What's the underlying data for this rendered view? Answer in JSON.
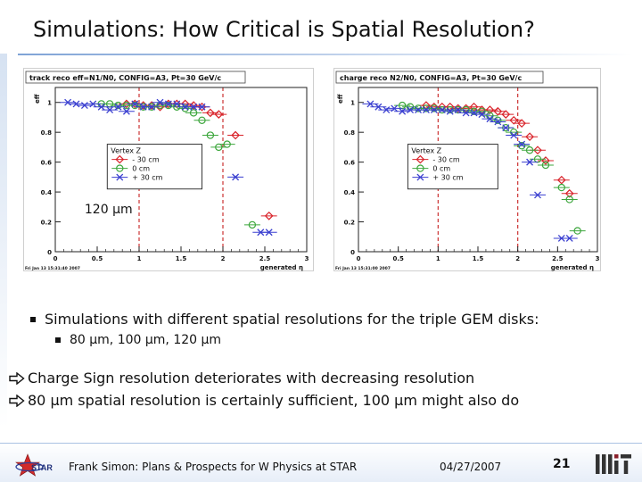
{
  "slide": {
    "title": "Simulations: How Critical is Spatial Resolution?",
    "bullet_main": "Simulations with different spatial resolutions for the triple GEM disks:",
    "bullet_sub": "80 µm, 100 µm, 120 µm",
    "conclusion_1": "Charge Sign resolution deteriorates with decreasing resolution",
    "conclusion_2": "80 µm spatial resolution is certainly sufficient, 100 µm might also do",
    "overlay_label": "120 µm"
  },
  "footer": {
    "author": "Frank Simon: Plans & Prospects for W Physics at STAR",
    "date": "04/27/2007",
    "page": "21",
    "logo_left": "STAR",
    "logo_right": "MIT"
  },
  "icons": {
    "bullet": "square-bullet-icon",
    "arrow": "hollow-right-arrow-icon"
  },
  "colors": {
    "minus30": "#d9232a",
    "zero": "#3ca63c",
    "plus30": "#3a3fd0"
  },
  "chart_data": [
    {
      "type": "scatter",
      "title": "track reco eff=N1/N0, CONFIG=A3, Pt=30 GeV/c",
      "ylabel": "eff",
      "xlabel": "generated η",
      "xlim": [
        0,
        3
      ],
      "ylim": [
        0,
        1.1
      ],
      "xticks": [
        "0",
        "0.5",
        "1",
        "1.5",
        "2",
        "2.5",
        "3"
      ],
      "yticks": [
        "0",
        "0.2",
        "0.4",
        "0.6",
        "0.8",
        "1"
      ],
      "footnote": "Fri Jan 13 15:31:40 2007",
      "legend": {
        "title": "Vertex Z",
        "placement": "center-left"
      },
      "series": [
        {
          "name": "- 30 cm",
          "color": "#d9232a",
          "marker": "diamond",
          "x": [
            0.85,
            0.95,
            1.05,
            1.15,
            1.25,
            1.35,
            1.45,
            1.55,
            1.65,
            1.75,
            1.85,
            1.95,
            2.15,
            2.55
          ],
          "y": [
            0.99,
            0.99,
            0.98,
            0.98,
            0.97,
            0.99,
            0.99,
            0.99,
            0.98,
            0.97,
            0.93,
            0.92,
            0.78,
            0.24
          ]
        },
        {
          "name": "0 cm",
          "color": "#3ca63c",
          "marker": "circle",
          "x": [
            0.55,
            0.65,
            0.75,
            0.85,
            0.95,
            1.05,
            1.15,
            1.25,
            1.35,
            1.45,
            1.55,
            1.65,
            1.75,
            1.85,
            1.95,
            2.05,
            2.35
          ],
          "y": [
            0.99,
            0.99,
            0.98,
            0.98,
            0.98,
            0.97,
            0.97,
            0.98,
            0.98,
            0.97,
            0.96,
            0.93,
            0.88,
            0.78,
            0.7,
            0.72,
            0.18
          ]
        },
        {
          "name": "+ 30 cm",
          "color": "#3a3fd0",
          "marker": "x",
          "x": [
            0.15,
            0.25,
            0.35,
            0.45,
            0.55,
            0.65,
            0.75,
            0.85,
            0.95,
            1.05,
            1.15,
            1.25,
            1.35,
            1.45,
            1.55,
            1.65,
            1.75,
            2.15,
            2.45,
            2.55
          ],
          "y": [
            1.0,
            0.99,
            0.98,
            0.99,
            0.97,
            0.95,
            0.97,
            0.94,
            0.99,
            0.97,
            0.97,
            1.0,
            0.99,
            0.99,
            0.97,
            0.97,
            0.97,
            0.5,
            0.13,
            0.13
          ]
        }
      ]
    },
    {
      "type": "scatter",
      "title": "charge reco N2/N0, CONFIG=A3, Pt=30 GeV/c",
      "ylabel": "eff",
      "xlabel": "generated η",
      "xlim": [
        0,
        3
      ],
      "ylim": [
        0,
        1.1
      ],
      "xticks": [
        "0",
        "0.5",
        "1",
        "1.5",
        "2",
        "2.5",
        "3"
      ],
      "yticks": [
        "0",
        "0.2",
        "0.4",
        "0.6",
        "0.8",
        "1"
      ],
      "footnote": "Fri Jan 13 15:31:00 2007",
      "legend": {
        "title": "Vertex Z",
        "placement": "center-left"
      },
      "series": [
        {
          "name": "- 30 cm",
          "color": "#d9232a",
          "marker": "diamond",
          "x": [
            0.85,
            0.95,
            1.05,
            1.15,
            1.25,
            1.35,
            1.45,
            1.55,
            1.65,
            1.75,
            1.85,
            1.95,
            2.05,
            2.15,
            2.25,
            2.35,
            2.55,
            2.65
          ],
          "y": [
            0.98,
            0.97,
            0.97,
            0.97,
            0.96,
            0.96,
            0.97,
            0.95,
            0.95,
            0.94,
            0.92,
            0.88,
            0.86,
            0.77,
            0.68,
            0.61,
            0.48,
            0.39
          ]
        },
        {
          "name": "0 cm",
          "color": "#3ca63c",
          "marker": "circle",
          "x": [
            0.55,
            0.65,
            0.75,
            0.85,
            0.95,
            1.05,
            1.15,
            1.25,
            1.35,
            1.45,
            1.55,
            1.65,
            1.75,
            1.85,
            1.95,
            2.05,
            2.15,
            2.25,
            2.35,
            2.55,
            2.65,
            2.75
          ],
          "y": [
            0.98,
            0.97,
            0.96,
            0.96,
            0.96,
            0.95,
            0.95,
            0.95,
            0.95,
            0.94,
            0.94,
            0.91,
            0.88,
            0.83,
            0.8,
            0.71,
            0.68,
            0.62,
            0.58,
            0.43,
            0.35,
            0.14
          ]
        },
        {
          "name": "+ 30 cm",
          "color": "#3a3fd0",
          "marker": "x",
          "x": [
            0.15,
            0.25,
            0.35,
            0.45,
            0.55,
            0.65,
            0.75,
            0.85,
            0.95,
            1.05,
            1.15,
            1.25,
            1.35,
            1.45,
            1.55,
            1.65,
            1.75,
            1.85,
            1.95,
            2.05,
            2.15,
            2.25,
            2.55,
            2.65
          ],
          "y": [
            0.99,
            0.97,
            0.95,
            0.96,
            0.94,
            0.95,
            0.95,
            0.95,
            0.95,
            0.95,
            0.94,
            0.95,
            0.93,
            0.93,
            0.92,
            0.89,
            0.87,
            0.83,
            0.78,
            0.72,
            0.6,
            0.38,
            0.09,
            0.09
          ]
        }
      ]
    }
  ]
}
